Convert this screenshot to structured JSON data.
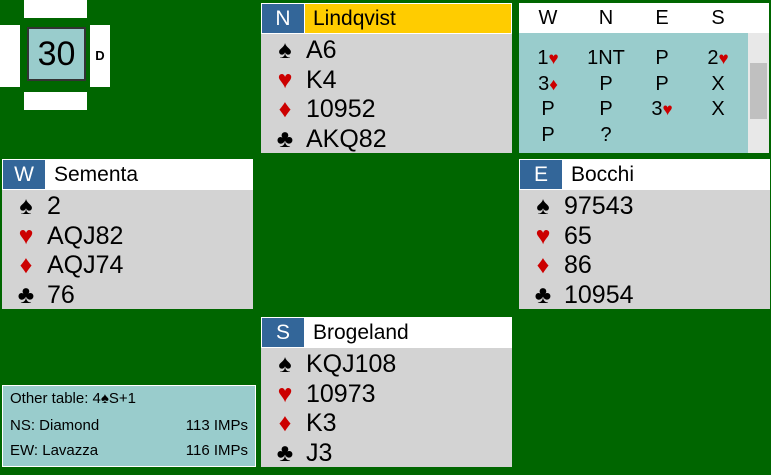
{
  "board": {
    "number": "30",
    "dealer": "D"
  },
  "hands": [
    {
      "seat": "N",
      "name": "Lindqvist",
      "suits": [
        {
          "symbol": "♠",
          "cards": "A6"
        },
        {
          "symbol": "♥",
          "cards": "K4"
        },
        {
          "symbol": "♦",
          "cards": "10952"
        },
        {
          "symbol": "♣",
          "cards": "AKQ82"
        }
      ]
    },
    {
      "seat": "W",
      "name": "Sementa",
      "suits": [
        {
          "symbol": "♠",
          "cards": "2"
        },
        {
          "symbol": "♥",
          "cards": "AQJ82"
        },
        {
          "symbol": "♦",
          "cards": "AQJ74"
        },
        {
          "symbol": "♣",
          "cards": "76"
        }
      ]
    },
    {
      "seat": "E",
      "name": "Bocchi",
      "suits": [
        {
          "symbol": "♠",
          "cards": "97543"
        },
        {
          "symbol": "♥",
          "cards": "65"
        },
        {
          "symbol": "♦",
          "cards": "86"
        },
        {
          "symbol": "♣",
          "cards": "10954"
        }
      ]
    },
    {
      "seat": "S",
      "name": "Brogeland",
      "suits": [
        {
          "symbol": "♠",
          "cards": "KQJ108"
        },
        {
          "symbol": "♥",
          "cards": "10973"
        },
        {
          "symbol": "♦",
          "cards": "K3"
        },
        {
          "symbol": "♣",
          "cards": "J3"
        }
      ]
    }
  ],
  "auction": {
    "header": [
      "W",
      "N",
      "E",
      "S"
    ],
    "rows": [
      [
        "1♥",
        "1NT",
        "P",
        "2♥"
      ],
      [
        "3♦",
        "P",
        "P",
        "X"
      ],
      [
        "P",
        "P",
        "3♥",
        "X"
      ],
      [
        "P",
        "?"
      ]
    ]
  },
  "info": {
    "other_table": "Other table: 4♠S+1",
    "scores": [
      {
        "team": "NS: Diamond",
        "imps": "113 IMPs"
      },
      {
        "team": "EW: Lavazza",
        "imps": "116 IMPs"
      }
    ]
  }
}
